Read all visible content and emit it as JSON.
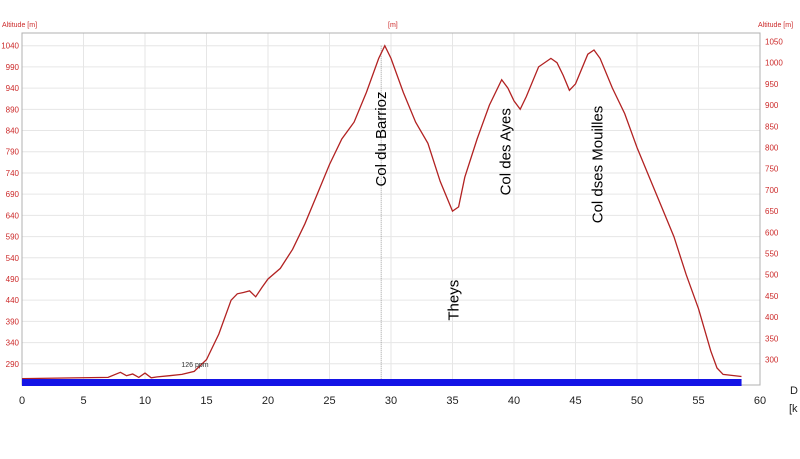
{
  "chart_data": {
    "type": "line",
    "left_axis_title": "Altitude [m]",
    "right_axis_title": "Altitude [m]",
    "center_axis_title": "[m]",
    "x_axis_title": "D",
    "x_axis_unit": "[k",
    "xlim": [
      0,
      60
    ],
    "ylim": [
      240,
      1070
    ],
    "x_ticks": [
      "0",
      "5",
      "10",
      "15",
      "20",
      "25",
      "30",
      "35",
      "40",
      "45",
      "50",
      "55",
      "60"
    ],
    "left_ticks": [
      "290",
      "340",
      "390",
      "440",
      "490",
      "540",
      "590",
      "640",
      "690",
      "740",
      "790",
      "840",
      "890",
      "940",
      "990",
      "1040"
    ],
    "right_ticks": [
      "300",
      "350",
      "400",
      "450",
      "500",
      "550",
      "600",
      "650",
      "700",
      "750",
      "800",
      "850",
      "900",
      "950",
      "1000",
      "1050"
    ],
    "grid": true,
    "series": [
      {
        "color": "#b22222",
        "x": [
          0,
          7,
          8,
          8.5,
          9,
          9.5,
          10,
          10.5,
          11,
          12,
          13,
          14,
          15,
          16,
          17,
          17.5,
          18,
          18.5,
          19,
          19.5,
          20,
          21,
          22,
          23,
          24,
          25,
          26,
          27,
          28,
          29,
          29.5,
          30,
          31,
          32,
          33,
          34,
          35,
          35.5,
          36,
          37,
          38,
          39,
          39.5,
          40,
          40.5,
          41,
          42,
          43,
          43.5,
          44,
          44.5,
          45,
          46,
          46.5,
          47,
          48,
          49,
          50,
          51,
          52,
          53,
          54,
          55,
          56,
          56.5,
          57,
          58.5
        ],
        "y": [
          255,
          258,
          270,
          262,
          266,
          258,
          268,
          257,
          259,
          262,
          265,
          272,
          300,
          360,
          440,
          455,
          458,
          462,
          448,
          470,
          490,
          515,
          560,
          620,
          690,
          760,
          820,
          860,
          930,
          1010,
          1040,
          1010,
          930,
          860,
          810,
          720,
          650,
          660,
          730,
          820,
          900,
          960,
          940,
          910,
          890,
          920,
          990,
          1010,
          1000,
          970,
          935,
          950,
          1020,
          1030,
          1010,
          940,
          880,
          800,
          730,
          660,
          590,
          500,
          420,
          320,
          280,
          265,
          260
        ]
      }
    ],
    "annotations": [
      {
        "text": "Col du Barrioz",
        "x": 29.2,
        "y": 820,
        "rotation": -90
      },
      {
        "text": "Col des Ayes",
        "x": 39.3,
        "y": 790,
        "rotation": -90
      },
      {
        "text": "Col dses Mouilles",
        "x": 46.8,
        "y": 760,
        "rotation": -90
      },
      {
        "text": "Theys",
        "x": 35.1,
        "y": 440,
        "rotation": -90
      }
    ],
    "marker_label": {
      "text": "126 ppm",
      "x": 14.5,
      "y": 282
    },
    "marker_line_x": 29.2,
    "baseline_bar": {
      "x_start": 0,
      "x_end": 58.5,
      "color": "#1414e6"
    }
  }
}
